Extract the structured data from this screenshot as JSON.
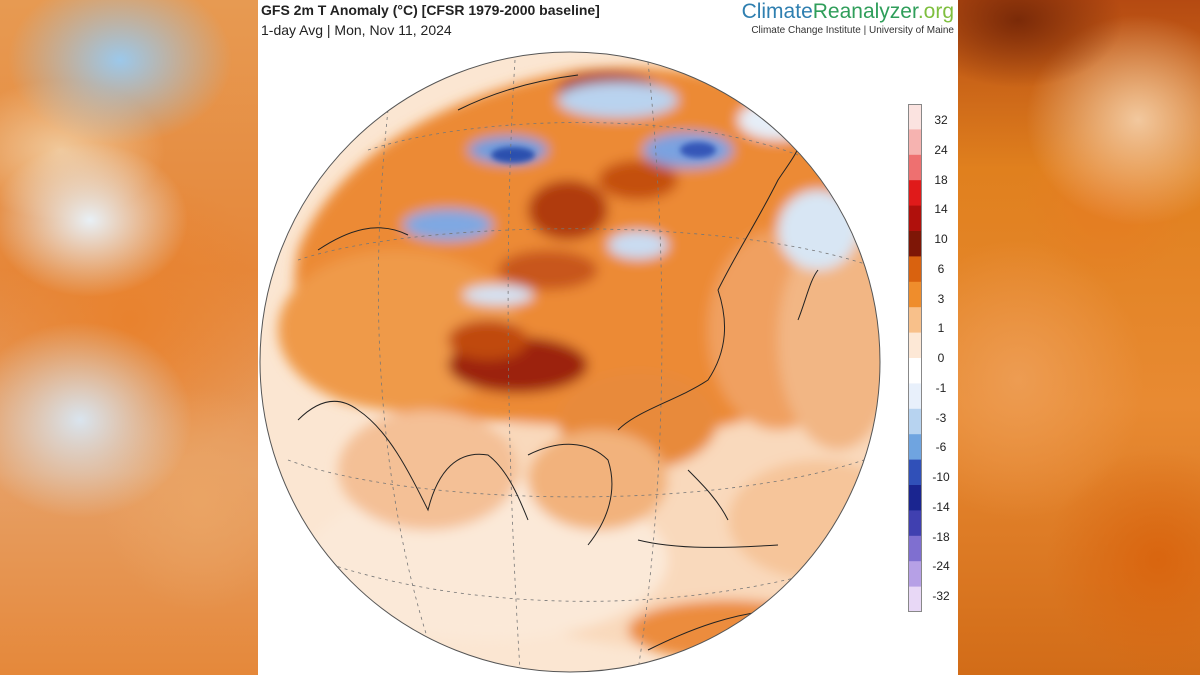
{
  "header": {
    "title": "GFS 2m T Anomaly (°C) [CFSR 1979-2000 baseline]",
    "subtitle": "1-day Avg | Mon, Nov 11, 2024"
  },
  "brand": {
    "name_part1": "Climate",
    "name_part2": "Reanalyzer",
    "name_part3": ".org",
    "affiliation": "Climate Change Institute | University of Maine",
    "colors": {
      "climate": "#2f7fb0",
      "reanalyzer": "#2f9e5a",
      "org": "#7fbf3f"
    }
  },
  "map": {
    "projection": "orthographic",
    "view": "Asia-centered globe",
    "variable": "2m temperature anomaly",
    "units": "°C"
  },
  "colorbar": {
    "labels": [
      "32",
      "24",
      "18",
      "14",
      "10",
      "6",
      "3",
      "1",
      "0",
      "-1",
      "-3",
      "-6",
      "-10",
      "-14",
      "-18",
      "-24",
      "-32"
    ],
    "colors": [
      "#fbe3e0",
      "#f6b3b0",
      "#ee7070",
      "#e01a1a",
      "#b0100c",
      "#7e1606",
      "#d9620f",
      "#ef8d2c",
      "#f8c08a",
      "#fde8d6",
      "#ffffff",
      "#e8f0fb",
      "#b7d3f0",
      "#6fa4e0",
      "#3050b8",
      "#1a2590",
      "#4040b0",
      "#7f6fd0",
      "#b6a0e6",
      "#e8d8f6"
    ]
  }
}
